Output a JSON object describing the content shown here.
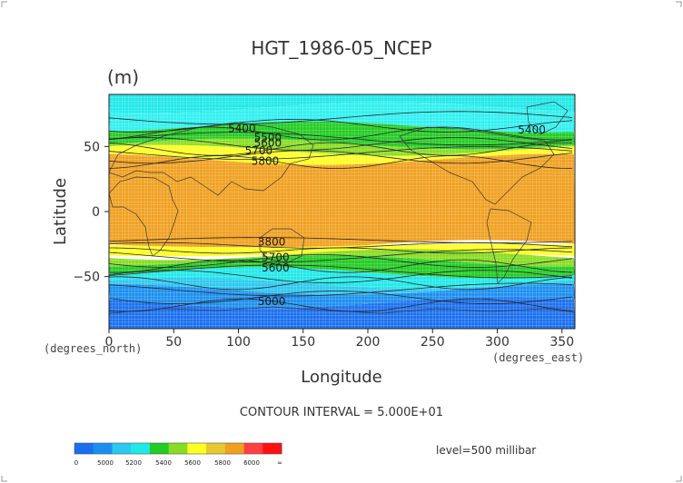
{
  "chart_data": {
    "type": "heatmap",
    "title": "HGT_1986-05_NCEP",
    "units": "(m)",
    "xlabel": "Longitude",
    "ylabel": "Latitude",
    "x_unit_label": "(degrees_east)",
    "y_unit_label": "(degrees_north)",
    "xlim": [
      0,
      360
    ],
    "ylim": [
      -90,
      90
    ],
    "x_ticks": [
      0,
      50,
      100,
      150,
      200,
      250,
      300,
      350
    ],
    "y_ticks": [
      50,
      0,
      -50
    ],
    "contour_interval_text": "CONTOUR INTERVAL = 5.000E+01",
    "level_text": "level=500 millibar",
    "contour_labels": [
      "5400",
      "5500",
      "5600",
      "5700",
      "5800",
      "5400",
      "3800",
      "5700",
      "5600",
      "5000"
    ],
    "colorbar": {
      "tick_labels": [
        "0",
        "5000",
        "5200",
        "5400",
        "5600",
        "5800",
        "6000",
        "∞"
      ],
      "colors": [
        "#1a6ff0",
        "#1a8ff0",
        "#2bc8f0",
        "#20e8e8",
        "#22cc22",
        "#88dd22",
        "#ffff22",
        "#e8c830",
        "#f0a020",
        "#ff4040",
        "#ff1010"
      ]
    },
    "zonal_bands": [
      {
        "lat_from": 90,
        "lat_to": 80,
        "color": "#20e8e8"
      },
      {
        "lat_from": 80,
        "lat_to": 65,
        "color": "#30f0f0"
      },
      {
        "lat_from": 65,
        "lat_to": 52,
        "color": "#22cc22"
      },
      {
        "lat_from": 52,
        "lat_to": 47,
        "color": "#88dd22"
      },
      {
        "lat_from": 47,
        "lat_to": 40,
        "color": "#ffff22"
      },
      {
        "lat_from": 40,
        "lat_to": -26,
        "color": "#f0a020"
      },
      {
        "lat_from": -26,
        "lat_to": -33,
        "color": "#ffff22"
      },
      {
        "lat_from": -33,
        "lat_to": -38,
        "color": "#88dd22"
      },
      {
        "lat_from": -38,
        "lat_to": -47,
        "color": "#22cc22"
      },
      {
        "lat_from": -47,
        "lat_to": -55,
        "color": "#20e8e8"
      },
      {
        "lat_from": -55,
        "lat_to": -60,
        "color": "#2bc8f0"
      },
      {
        "lat_from": -60,
        "lat_to": -70,
        "color": "#1a8ff0"
      },
      {
        "lat_from": -70,
        "lat_to": -90,
        "color": "#1a6ff0"
      }
    ]
  }
}
